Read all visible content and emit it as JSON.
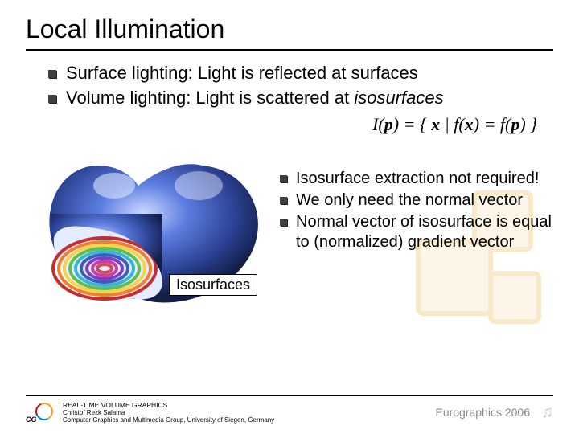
{
  "title": "Local Illumination",
  "top_bullets": [
    {
      "text": "Surface lighting: Light is reflected at surfaces"
    },
    {
      "html": "Volume lighting: Light is scattered at <i>isosurfaces</i>"
    }
  ],
  "formula": "I(<b>p</b>) = { <b>x</b> | f(<b>x</b>) = f(<b>p</b>) }",
  "figure": {
    "label": "Isosurfaces",
    "colors": {
      "outer_surface": "#3b5fb8",
      "outer_highlight": "#9fb6ff",
      "outer_dark": "#1a2960",
      "rings": [
        "#c42e2e",
        "#f08030",
        "#f5d34a",
        "#5fbf4a",
        "#38b6d8",
        "#3b5fb8",
        "#7a3fc4",
        "#c43fa8",
        "#d44a5a",
        "#f08030",
        "#5fbf4a"
      ],
      "cut_bg": "#dde6ff"
    }
  },
  "right_bullets": [
    "Isosurface extraction not required!",
    "We only need the normal vector",
    "Normal vector of isosurface is equal to (normalized) gradient vector"
  ],
  "footer": {
    "logo_text": "CG",
    "title_line": "REAL-TIME VOLUME GRAPHICS",
    "author": "Christof Rezk Salama",
    "affiliation": "Computer Graphics and Multimedia Group, University of Siegen, Germany",
    "right": "Eurographics 2006"
  },
  "bg_deco": {
    "stroke": "#f5c978",
    "fill": "#fbe9c8"
  }
}
